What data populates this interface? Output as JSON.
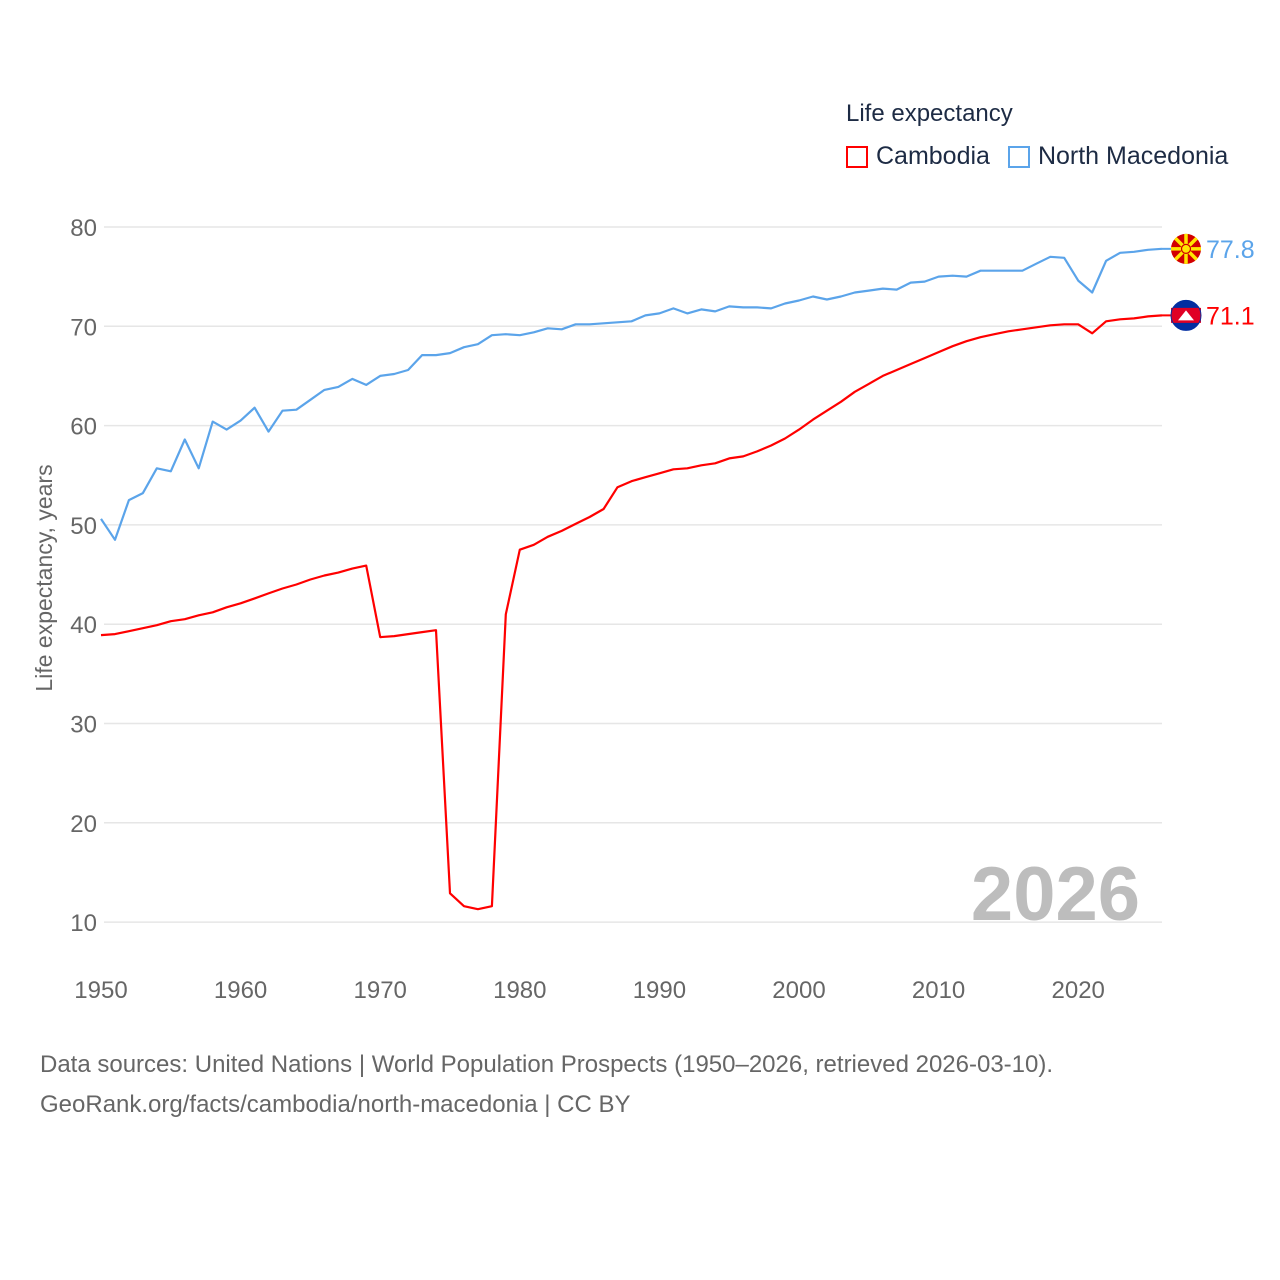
{
  "chart_data": {
    "type": "line",
    "ylabel": "Life expectancy, years",
    "xlabel": "",
    "legend_title": "Life expectancy",
    "legend_placement": "top-right",
    "xlim": [
      1950,
      2026
    ],
    "ylim": [
      5,
      82
    ],
    "xticks": [
      1950,
      1960,
      1970,
      1980,
      1990,
      2000,
      2010,
      2020
    ],
    "yticks": [
      10,
      20,
      30,
      40,
      50,
      60,
      70,
      80
    ],
    "grid": true,
    "year_watermark": "2026",
    "x_start": 1950,
    "series": [
      {
        "name": "Cambodia",
        "color": "#ff0000",
        "end_label": "71.1",
        "flag": "cambodia-flag",
        "values": [
          38.9,
          39.0,
          39.3,
          39.6,
          39.9,
          40.3,
          40.5,
          40.9,
          41.2,
          41.7,
          42.1,
          42.6,
          43.1,
          43.6,
          44.0,
          44.5,
          44.9,
          45.2,
          45.6,
          45.9,
          38.7,
          38.8,
          39.0,
          39.2,
          39.4,
          12.9,
          11.6,
          11.3,
          11.6,
          41.0,
          47.5,
          48.0,
          48.8,
          49.4,
          50.1,
          50.8,
          51.6,
          53.8,
          54.4,
          54.8,
          55.2,
          55.6,
          55.7,
          56.0,
          56.2,
          56.7,
          56.9,
          57.4,
          58.0,
          58.7,
          59.6,
          60.6,
          61.5,
          62.4,
          63.4,
          64.2,
          65.0,
          65.6,
          66.2,
          66.8,
          67.4,
          68.0,
          68.5,
          68.9,
          69.2,
          69.5,
          69.7,
          69.9,
          70.1,
          70.2,
          70.2,
          69.3,
          70.5,
          70.7,
          70.8,
          71.0,
          71.1
        ]
      },
      {
        "name": "North Macedonia",
        "color": "#5ba4ea",
        "end_label": "77.8",
        "flag": "north-macedonia-flag",
        "values": [
          50.6,
          48.5,
          52.5,
          53.2,
          55.7,
          55.4,
          58.6,
          55.7,
          60.4,
          59.6,
          60.5,
          61.8,
          59.4,
          61.5,
          61.6,
          62.6,
          63.6,
          63.9,
          64.7,
          64.1,
          65.0,
          65.2,
          65.6,
          67.1,
          67.1,
          67.3,
          67.9,
          68.2,
          69.1,
          69.2,
          69.1,
          69.4,
          69.8,
          69.7,
          70.2,
          70.2,
          70.3,
          70.4,
          70.5,
          71.1,
          71.3,
          71.8,
          71.3,
          71.7,
          71.5,
          72.0,
          71.9,
          71.9,
          71.8,
          72.3,
          72.6,
          73.0,
          72.7,
          73.0,
          73.4,
          73.6,
          73.8,
          73.7,
          74.4,
          74.5,
          75.0,
          75.1,
          75.0,
          75.6,
          75.6,
          75.6,
          75.6,
          76.3,
          77.0,
          76.9,
          74.6,
          73.4,
          76.6,
          77.4,
          77.5,
          77.7,
          77.8
        ]
      }
    ]
  },
  "footer": {
    "line1": "Data sources: United Nations | World Population Prospects (1950–2026, retrieved 2026-03-10).",
    "line2": "GeoRank.org/facts/cambodia/north-macedonia | CC BY"
  }
}
